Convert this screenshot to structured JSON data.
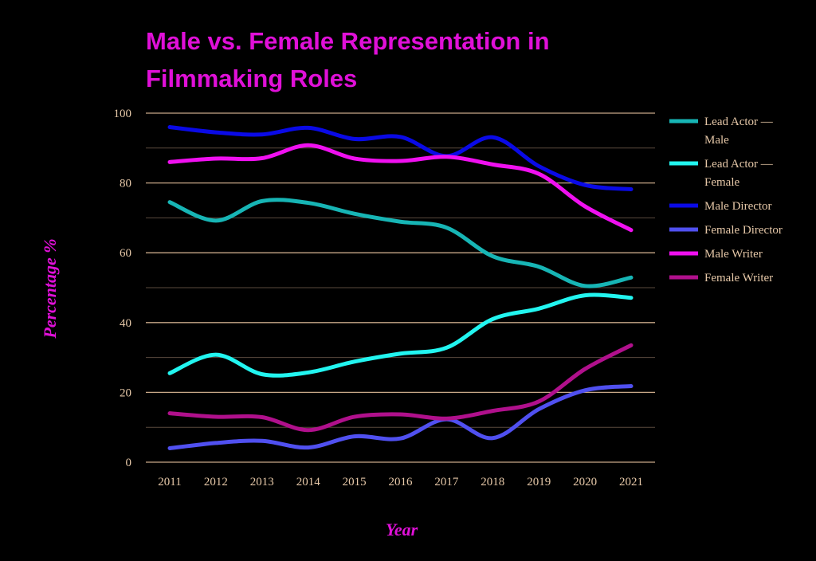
{
  "chart_data": {
    "type": "line",
    "title_lines": [
      "Male vs. Female Representation in",
      "Filmmaking Roles"
    ],
    "xlabel": "Year",
    "ylabel": "Percentage %",
    "x": [
      "2011",
      "2012",
      "2013",
      "2014",
      "2015",
      "2016",
      "2017",
      "2018",
      "2019",
      "2020",
      "2021"
    ],
    "ylim": [
      0,
      100
    ],
    "yticks": [
      "0",
      "20",
      "40",
      "60",
      "80",
      "100"
    ],
    "grid": true,
    "legend_position": "right",
    "series": [
      {
        "name": "Lead Actor — Male",
        "legend_lines": [
          "Lead Actor —",
          "Male"
        ],
        "color": "#17b5b5",
        "values": [
          74.5,
          69.2,
          74.8,
          74.3,
          71.2,
          68.9,
          67.2,
          59.0,
          56.0,
          50.5,
          52.9
        ]
      },
      {
        "name": "Lead Actor — Female",
        "legend_lines": [
          "Lead Actor —",
          "Female"
        ],
        "color": "#22f5f0",
        "values": [
          25.5,
          30.8,
          25.2,
          25.7,
          28.8,
          31.1,
          32.8,
          41.0,
          44.0,
          47.8,
          47.1
        ]
      },
      {
        "name": "Male Director",
        "legend_lines": [
          "Male Director"
        ],
        "color": "#0a0ae6",
        "values": [
          96.0,
          94.5,
          93.9,
          95.8,
          92.6,
          93.2,
          87.7,
          93.1,
          84.8,
          79.4,
          78.2
        ]
      },
      {
        "name": "Female Director",
        "legend_lines": [
          "Female Director"
        ],
        "color": "#5050f0",
        "values": [
          4.0,
          5.5,
          6.1,
          4.2,
          7.4,
          6.8,
          12.3,
          6.9,
          15.2,
          20.6,
          21.8
        ]
      },
      {
        "name": "Male Writer",
        "legend_lines": [
          "Male Writer"
        ],
        "color": "#f010f0",
        "values": [
          86.0,
          87.0,
          87.1,
          90.8,
          87.0,
          86.3,
          87.5,
          85.3,
          82.6,
          73.3,
          66.5
        ]
      },
      {
        "name": "Female Writer",
        "legend_lines": [
          "Female Writer"
        ],
        "color": "#b0108c",
        "values": [
          14.0,
          13.0,
          12.9,
          9.2,
          13.0,
          13.7,
          12.5,
          14.7,
          17.4,
          26.7,
          33.5
        ]
      }
    ]
  }
}
